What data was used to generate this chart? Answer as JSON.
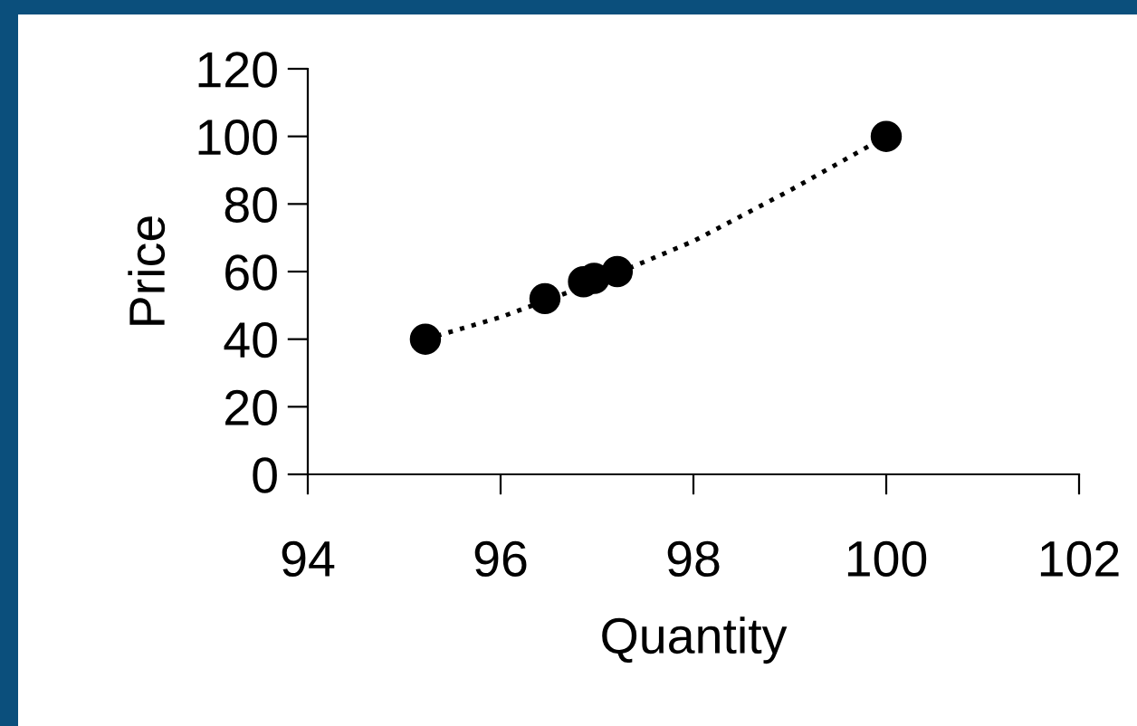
{
  "chart_data": {
    "type": "scatter",
    "xlabel": "Quantity",
    "ylabel": "Price",
    "series": [
      {
        "color": "#000000",
        "marker": "circle",
        "x": [
          95.22,
          96.46,
          96.86,
          96.97,
          97.21,
          100.0
        ],
        "values": [
          40,
          52,
          57,
          58,
          60,
          100
        ]
      },
      {
        "type": "line",
        "color": "#000000",
        "line_style": "dotted",
        "marker": "none",
        "x": [
          95.22,
          96,
          97,
          98,
          99,
          100
        ],
        "values": [
          40,
          46.5,
          57,
          69,
          84,
          100
        ]
      }
    ],
    "xlim": [
      94,
      102
    ],
    "xticks": [
      94,
      96,
      98,
      100,
      102
    ],
    "ylim": [
      0,
      120
    ],
    "yticks": [
      0,
      20,
      40,
      60,
      80,
      100,
      120
    ],
    "grid": false,
    "legend": false
  }
}
